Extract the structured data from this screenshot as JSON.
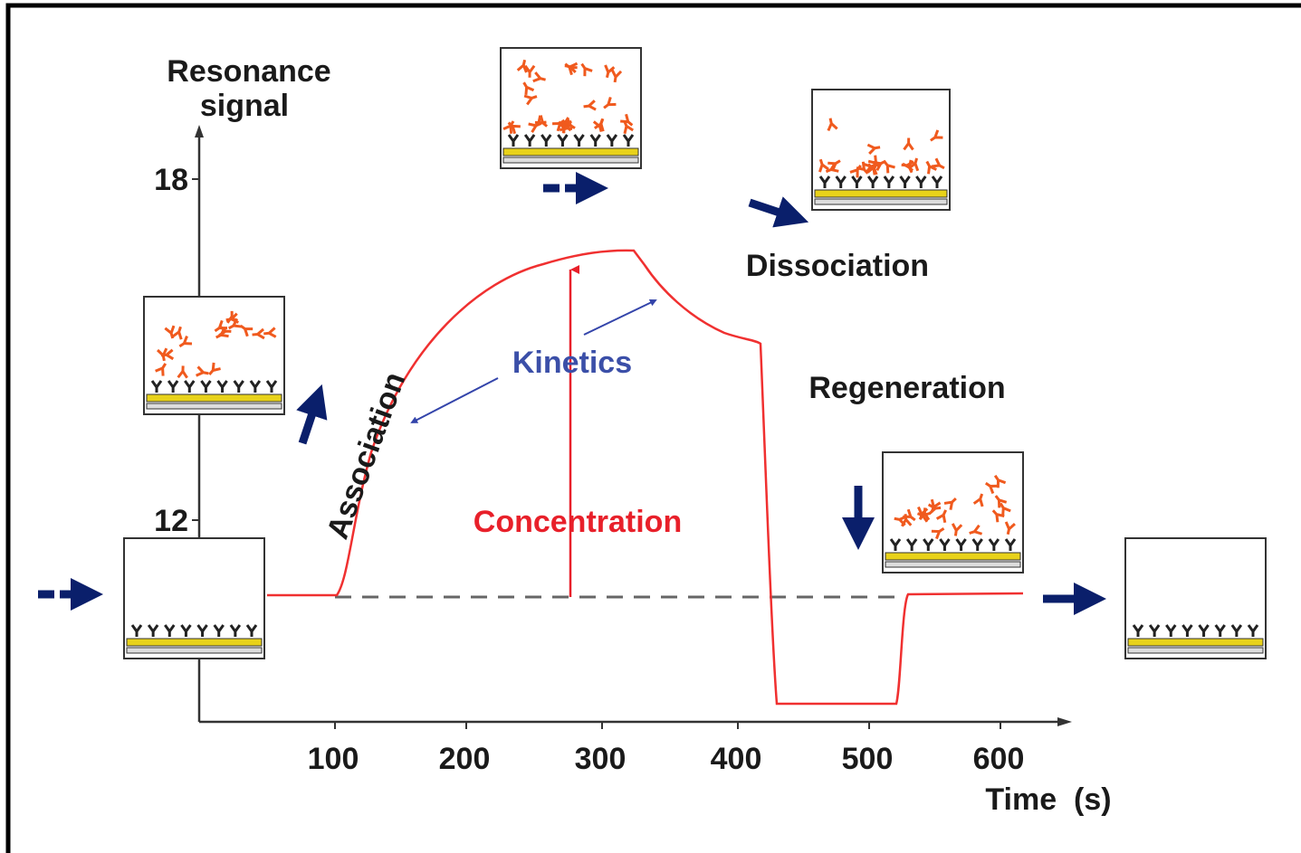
{
  "y_axis": {
    "label": [
      "Resonance",
      "signal"
    ],
    "ticks": [
      "18",
      "12"
    ]
  },
  "x_axis": {
    "label": "Time  (s)",
    "ticks": [
      "100",
      "200",
      "300",
      "400",
      "500",
      "600"
    ]
  },
  "annotations": {
    "association": "Association",
    "kinetics": "Kinetics",
    "concentration": "Concentration",
    "dissociation": "Dissociation",
    "regeneration": "Regeneration"
  }
}
